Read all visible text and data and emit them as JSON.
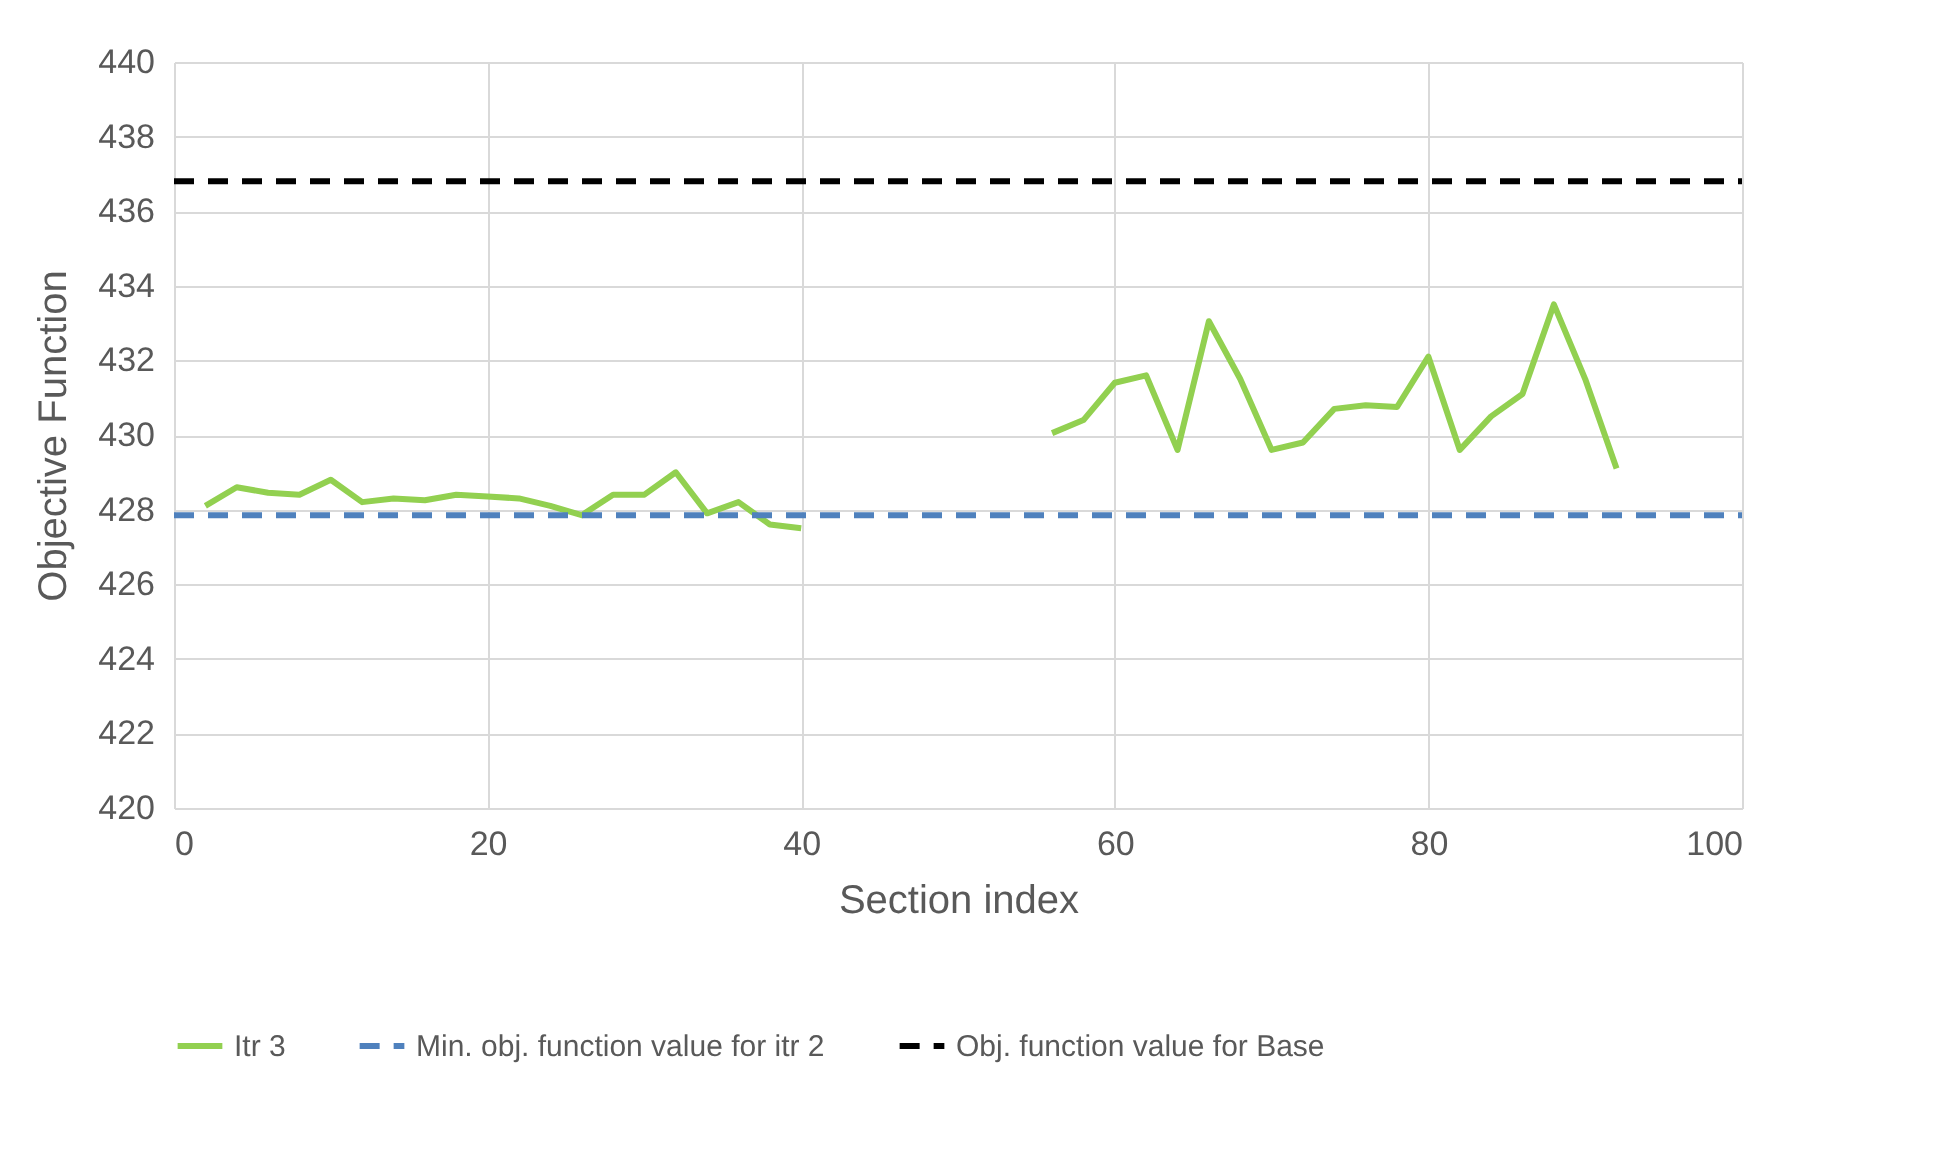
{
  "chart_data": {
    "type": "line",
    "xlabel": "Section index",
    "ylabel": "Objective Function",
    "xlim": [
      0,
      100
    ],
    "xticks": [
      0,
      20,
      40,
      60,
      80,
      100
    ],
    "ylim": [
      420,
      440
    ],
    "yticks": [
      420,
      422,
      424,
      426,
      428,
      430,
      432,
      434,
      436,
      438,
      440
    ],
    "grid": true,
    "legend": "bottom",
    "marker": "none",
    "x": [
      2,
      4,
      6,
      8,
      10,
      12,
      14,
      16,
      18,
      20,
      22,
      24,
      26,
      28,
      30,
      32,
      34,
      36,
      38,
      40,
      42,
      44,
      46,
      48,
      50,
      52,
      54,
      56,
      58,
      60,
      62,
      64,
      66,
      68,
      70,
      72,
      74,
      76,
      78,
      80,
      82,
      84,
      86,
      88,
      90,
      92
    ],
    "series": [
      {
        "name": "Itr 3",
        "color": "#92d050",
        "line_style": "solid",
        "values": [
          428.1,
          428.6,
          428.45,
          428.4,
          428.8,
          428.2,
          428.3,
          428.25,
          428.4,
          428.35,
          428.3,
          428.1,
          427.85,
          428.4,
          428.4,
          429.0,
          427.9,
          428.2,
          427.6,
          427.5,
          null,
          null,
          null,
          null,
          null,
          null,
          null,
          430.05,
          430.4,
          431.4,
          431.6,
          429.6,
          433.05,
          431.5,
          429.6,
          429.8,
          430.7,
          430.8,
          430.75,
          432.1,
          429.6,
          430.5,
          431.1,
          433.5,
          431.5,
          429.1
        ]
      }
    ],
    "ref_lines": [
      {
        "axis": "y",
        "value": 427.85,
        "label": "Min. obj. function value for itr 2",
        "color": "#4f81bd",
        "line_style": "dashed"
      },
      {
        "axis": "y",
        "value": 436.8,
        "label": "Obj. function value for Base",
        "color": "#000000",
        "line_style": "dashed"
      }
    ]
  }
}
